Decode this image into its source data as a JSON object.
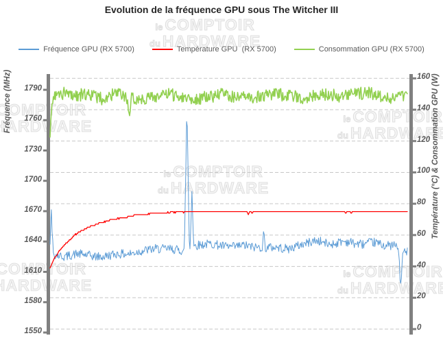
{
  "title": "Evolution de la fréquence GPU sous The Witcher III",
  "watermark": {
    "small1": "le",
    "big1": "COMPTOIR",
    "small2": "du",
    "big2": "HARDWARE"
  },
  "legend": [
    {
      "label": "Fréquence GPU (RX 5700)",
      "color": "#5B9BD5"
    },
    {
      "label": "Température GPU  (RX 5700)",
      "color": "#FF0000"
    },
    {
      "label": "Consommation GPU (RX 5700)",
      "color": "#92D050"
    }
  ],
  "colors": {
    "frequency": "#5B9BD5",
    "temperature": "#FF0000",
    "power": "#92D050",
    "axis_bar": "#808080",
    "gridline": "#C6C6C6",
    "tick_text": "#595959",
    "title_text": "#262626"
  },
  "chart_data": {
    "type": "line",
    "title": "Evolution de la fréquence GPU sous The Witcher III",
    "grid": "horizontal dashed",
    "legend_position": "top",
    "x_axis": {
      "label": "",
      "ticks_visible": false,
      "note": "temps de jeu, axe non gradué"
    },
    "left_y_axis": {
      "label": "Fréquence (MHz)",
      "range": [
        1550,
        1790
      ],
      "tick_step": 30,
      "ticks": [
        1790,
        1760,
        1730,
        1700,
        1670,
        1640,
        1610,
        1580,
        1550
      ]
    },
    "right_y_axis": {
      "label": "Température (°C) & Consommation GPU (W)",
      "range": [
        0,
        160
      ],
      "tick_step": 20,
      "ticks": [
        160,
        140,
        120,
        100,
        80,
        60,
        40,
        20,
        0
      ]
    },
    "series": [
      {
        "name": "Fréquence GPU (RX 5700)",
        "axis": "left",
        "unit": "MHz",
        "color": "#5B9BD5",
        "summary": {
          "start": 1641,
          "typical_band": [
            1620,
            1645
          ],
          "max_spike": 1775,
          "end_dip": 1596
        },
        "samples": 540,
        "seed": 42,
        "noise": 4.5,
        "trend": [
          [
            0,
            1641
          ],
          [
            0.003,
            1675
          ],
          [
            0.006,
            1645
          ],
          [
            0.01,
            1627
          ],
          [
            0.04,
            1625
          ],
          [
            0.08,
            1626
          ],
          [
            0.12,
            1625
          ],
          [
            0.16,
            1627
          ],
          [
            0.2,
            1628
          ],
          [
            0.25,
            1630
          ],
          [
            0.3,
            1631
          ],
          [
            0.34,
            1633
          ],
          [
            0.38,
            1632
          ],
          [
            0.42,
            1635
          ],
          [
            0.46,
            1637
          ],
          [
            0.5,
            1636
          ],
          [
            0.54,
            1637
          ],
          [
            0.57,
            1634
          ],
          [
            0.6,
            1633
          ],
          [
            0.64,
            1634
          ],
          [
            0.68,
            1636
          ],
          [
            0.72,
            1638
          ],
          [
            0.76,
            1640
          ],
          [
            0.8,
            1639
          ],
          [
            0.84,
            1641
          ],
          [
            0.88,
            1639
          ],
          [
            0.91,
            1641
          ],
          [
            0.94,
            1638
          ],
          [
            0.965,
            1638
          ],
          [
            0.975,
            1634
          ],
          [
            0.981,
            1596
          ],
          [
            0.988,
            1630
          ],
          [
            1,
            1628
          ]
        ],
        "spikes": [
          {
            "x": 0.383,
            "value": 1775,
            "width": 0.007
          },
          {
            "x": 0.397,
            "value": 1690,
            "width": 0.005
          },
          {
            "x": 0.598,
            "value": 1652,
            "width": 0.004
          }
        ]
      },
      {
        "name": "Température GPU  (RX 5700)",
        "axis": "right",
        "unit": "°C",
        "color": "#FF0000",
        "summary": {
          "start": 39,
          "plateau": 75,
          "rise_complete_at_x": 0.3
        },
        "samples": 520,
        "seed": 7,
        "noise": 0.3,
        "quantize": 1,
        "trend": [
          [
            0,
            39
          ],
          [
            0.012,
            45
          ],
          [
            0.025,
            50
          ],
          [
            0.045,
            55
          ],
          [
            0.07,
            60
          ],
          [
            0.1,
            64
          ],
          [
            0.13,
            67
          ],
          [
            0.16,
            69
          ],
          [
            0.2,
            71
          ],
          [
            0.24,
            72.6
          ],
          [
            0.28,
            73.6
          ],
          [
            0.33,
            74.3
          ],
          [
            0.38,
            74.8
          ],
          [
            0.44,
            75
          ],
          [
            1,
            75
          ]
        ],
        "spikes": [
          {
            "x": 0.555,
            "value": 73,
            "width": 0.004
          },
          {
            "x": 0.566,
            "value": 74,
            "width": 0.003
          },
          {
            "x": 0.828,
            "value": 73.4,
            "width": 0.004
          },
          {
            "x": 0.843,
            "value": 74,
            "width": 0.003
          }
        ]
      },
      {
        "name": "Consommation GPU (RX 5700)",
        "axis": "right",
        "unit": "W",
        "color": "#92D050",
        "summary": {
          "start": 124,
          "mean": 149,
          "typical_band": [
            142,
            156
          ],
          "dip": 135
        },
        "samples": 540,
        "seed": 99,
        "noise": 4,
        "trend": [
          [
            0,
            124
          ],
          [
            0.005,
            146
          ],
          [
            0.015,
            149
          ],
          [
            0.5,
            149
          ],
          [
            1,
            148.5
          ]
        ],
        "spikes": [
          {
            "x": 0.222,
            "value": 135,
            "width": 0.006
          }
        ]
      }
    ]
  }
}
